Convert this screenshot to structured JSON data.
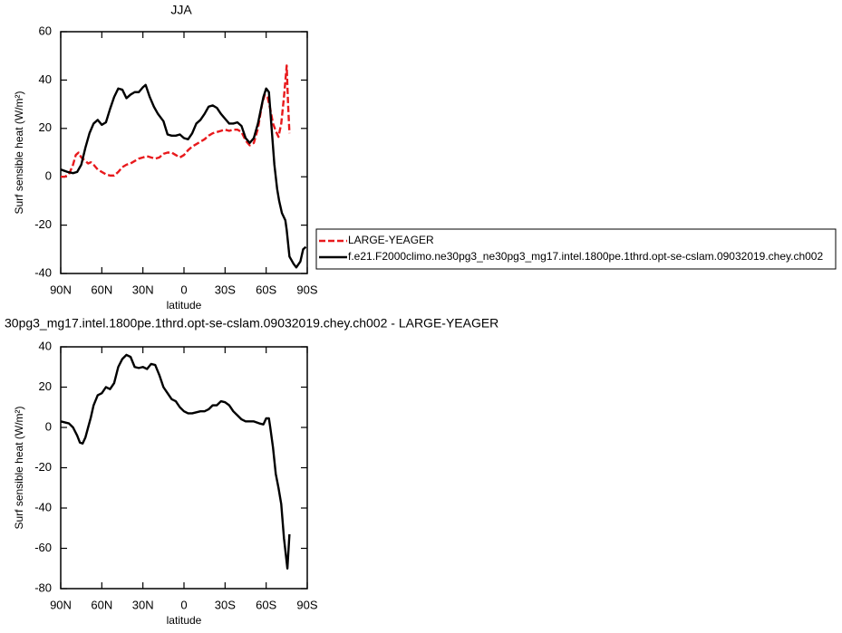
{
  "chart_data": [
    {
      "type": "line",
      "title": "JJA",
      "xlabel": "latitude",
      "ylabel": "Surf sensible heat (W/m²)",
      "xlim": [
        90,
        -90
      ],
      "xticks": [
        {
          "value": 90,
          "label": "90N"
        },
        {
          "value": 60,
          "label": "60N"
        },
        {
          "value": 30,
          "label": "30N"
        },
        0,
        {
          "value": -30,
          "label": "30S"
        },
        {
          "value": -60,
          "label": "60S"
        },
        {
          "value": -90,
          "label": "90S"
        }
      ],
      "ylim": [
        -40,
        60
      ],
      "yticks": [
        -40,
        -20,
        0,
        20,
        40,
        60
      ],
      "legend": "right",
      "series": [
        {
          "name": "LARGE-YEAGER",
          "color": "#e8191c",
          "dashed": true,
          "x": [
            90,
            87,
            84,
            81,
            79,
            77,
            75,
            72,
            70,
            68,
            66,
            63,
            60,
            57,
            54,
            51,
            48,
            45,
            42,
            39,
            36,
            33,
            30,
            27,
            24,
            21,
            18,
            15,
            12,
            9,
            6,
            3,
            0,
            -3,
            -6,
            -9,
            -12,
            -15,
            -18,
            -21,
            -24,
            -27,
            -30,
            -33,
            -36,
            -39,
            -42,
            -45,
            -48,
            -51,
            -54,
            -57,
            -59,
            -61,
            -63,
            -65,
            -67,
            -69,
            -71,
            -73,
            -75,
            -76,
            -77
          ],
          "values": [
            0,
            0,
            1,
            5,
            9,
            10,
            8,
            6.5,
            5.5,
            6,
            5,
            3,
            2,
            1,
            0.5,
            0.5,
            2,
            4,
            5,
            5.5,
            6.5,
            7.5,
            8,
            8.5,
            8,
            7.5,
            8,
            9.5,
            10,
            10,
            9,
            8,
            9,
            11,
            12.5,
            13.5,
            14.5,
            15.5,
            17,
            18,
            18.5,
            19,
            19.5,
            19,
            19.5,
            19.5,
            18.5,
            15,
            13,
            14,
            20,
            30,
            34,
            33,
            28,
            22,
            19,
            16.5,
            22,
            33,
            46,
            30,
            18
          ]
        },
        {
          "name": "f.e21.F2000climo.ne30pg3_ne30pg3_mg17.intel.1800pe.1thrd.opt-se-cslam.09032019.chey.ch002",
          "color": "#000000",
          "dashed": false,
          "x": [
            90,
            85,
            81,
            78,
            75,
            72,
            69,
            66,
            63,
            60,
            57,
            54,
            51,
            48,
            45,
            42,
            39,
            36,
            33,
            30,
            28,
            25,
            22,
            19,
            15,
            12,
            9,
            6,
            3,
            0,
            -3,
            -6,
            -9,
            -12,
            -15,
            -18,
            -21,
            -24,
            -27,
            -30,
            -33,
            -36,
            -39,
            -42,
            -45,
            -48,
            -51,
            -54,
            -58,
            -60,
            -62,
            -64,
            -66,
            -68,
            -69.5,
            -71.5,
            -74,
            -75,
            -77,
            -80,
            -82,
            -85,
            -87,
            -89
          ],
          "values": [
            3,
            2,
            1.5,
            2,
            5,
            12,
            18,
            22,
            23.5,
            21.5,
            22.5,
            28,
            33,
            36.5,
            36,
            32.5,
            34,
            35,
            35,
            37,
            38,
            33,
            29,
            26,
            23,
            17.5,
            17,
            17,
            17.5,
            16,
            15.5,
            18,
            22,
            23.5,
            26,
            29,
            29.5,
            28.5,
            26,
            24,
            22,
            22,
            22.5,
            21,
            16,
            14,
            16,
            22,
            33,
            36.5,
            35,
            20,
            5,
            -5,
            -10,
            -15,
            -18,
            -22,
            -33,
            -36,
            -37.5,
            -35,
            -30,
            -29
          ]
        }
      ]
    },
    {
      "type": "line",
      "title": "30pg3_mg17.intel.1800pe.1thrd.opt-se-cslam.09032019.chey.ch002 - LARGE-YEAGER",
      "xlabel": "latitude",
      "ylabel": "Surf sensible heat (W/m²)",
      "xlim": [
        90,
        -90
      ],
      "xticks": [
        {
          "value": 90,
          "label": "90N"
        },
        {
          "value": 60,
          "label": "60N"
        },
        {
          "value": 30,
          "label": "30N"
        },
        0,
        {
          "value": -30,
          "label": "30S"
        },
        {
          "value": -60,
          "label": "60S"
        },
        {
          "value": -90,
          "label": "90S"
        }
      ],
      "ylim": [
        -80,
        40
      ],
      "yticks": [
        -80,
        -60,
        -40,
        -20,
        0,
        20,
        40
      ],
      "series": [
        {
          "color": "#000000",
          "dashed": false,
          "x": [
            90,
            87,
            84,
            81,
            78,
            76,
            74,
            72,
            70,
            68,
            66,
            63,
            60,
            57,
            54,
            51,
            48,
            45,
            42,
            39,
            36,
            33,
            30,
            27,
            24,
            21,
            18,
            15,
            12,
            9,
            6,
            3,
            0,
            -3,
            -6,
            -9,
            -12,
            -15,
            -18,
            -21,
            -24,
            -27,
            -30,
            -33,
            -36,
            -39,
            -42,
            -45,
            -48,
            -51,
            -55,
            -58,
            -60,
            -62,
            -63,
            -65,
            -67,
            -69,
            -71,
            -73,
            -75.5,
            -77
          ],
          "values": [
            3,
            2.5,
            2,
            0,
            -4,
            -7.5,
            -8,
            -5,
            0,
            5,
            11,
            16,
            17,
            20,
            19,
            22,
            30,
            34,
            36,
            35,
            30,
            29.5,
            30,
            29,
            31.5,
            31,
            26,
            20,
            17,
            14,
            13,
            10,
            8,
            7,
            7,
            7.5,
            8,
            8,
            9,
            11,
            11,
            13,
            12.5,
            11,
            8,
            6,
            4,
            3,
            3,
            3,
            2,
            1.5,
            4.5,
            4.5,
            0,
            -10,
            -23,
            -30,
            -38,
            -55,
            -70,
            -53
          ]
        }
      ]
    }
  ]
}
